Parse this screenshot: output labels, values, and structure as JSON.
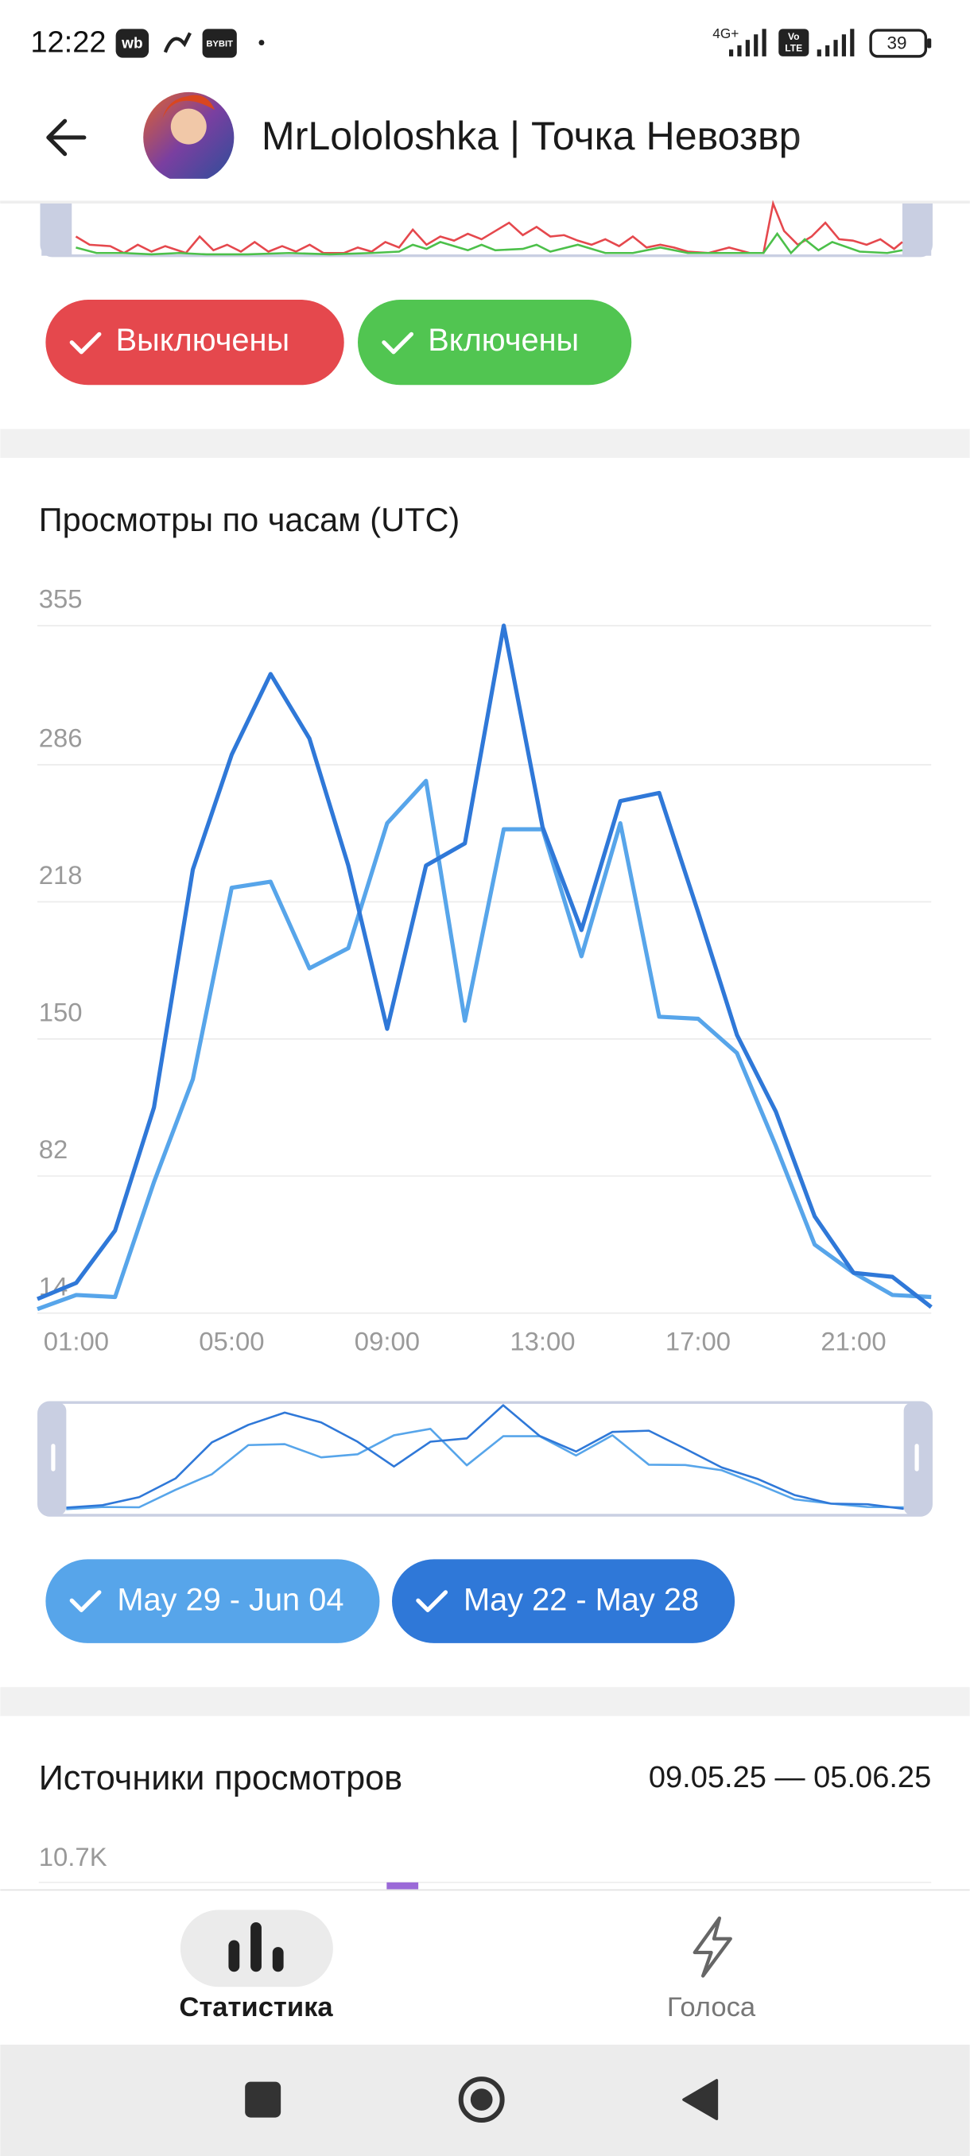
{
  "status_bar": {
    "time": "12:22",
    "icons": [
      "wb",
      "BYBIT"
    ],
    "network": "4G+",
    "volte": [
      "Vo",
      "LTE"
    ],
    "battery": "39"
  },
  "header": {
    "title": "MrLololoshka | Точка Невозвр"
  },
  "top_filters": [
    "Выключены",
    "Включены"
  ],
  "chart_data": {
    "type": "line",
    "title": "Просмотры по часам (UTC)",
    "categories": [
      null,
      "01:00",
      null,
      null,
      null,
      "05:00",
      null,
      null,
      null,
      "09:00",
      null,
      null,
      null,
      "13:00",
      null,
      null,
      null,
      "17:00",
      null,
      null,
      null,
      "21:00",
      null,
      null
    ],
    "series": [
      {
        "name": "May 29 - Jun 04",
        "color": "#57a5ea",
        "values": [
          16,
          23,
          22,
          79,
          130,
          225,
          228,
          185,
          195,
          257,
          278,
          159,
          254,
          254,
          191,
          257,
          161,
          160,
          143,
          97,
          48,
          34,
          23,
          22
        ]
      },
      {
        "name": "May 22 - May 28",
        "color": "#2f78d8",
        "values": [
          21,
          29,
          55,
          116,
          234,
          291,
          331,
          299,
          236,
          155,
          236,
          247,
          355,
          255,
          204,
          268,
          272,
          213,
          152,
          114,
          62,
          34,
          32,
          17
        ]
      }
    ],
    "ylim": [
      14,
      355
    ],
    "yticks": [
      14,
      82,
      150,
      218,
      286,
      355
    ],
    "grid": true
  },
  "sources": {
    "title": "Источники просмотров",
    "date_range": "09.05.25 — 05.06.25",
    "ytick": "10.7K"
  },
  "bottom_nav": [
    "Статистика",
    "Голоса"
  ]
}
